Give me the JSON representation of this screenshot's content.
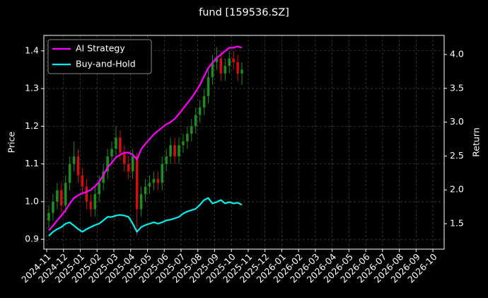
{
  "chart_data": {
    "type": "candlestick",
    "title": "fund [159536.SZ]",
    "ylabel": "Price",
    "y2label": "Return",
    "x": [
      "2024-11",
      "2024-11",
      "2024-11",
      "2024-11",
      "2024-12",
      "2024-12",
      "2024-12",
      "2024-12",
      "2025-01",
      "2025-01",
      "2025-01",
      "2025-01",
      "2025-02",
      "2025-02",
      "2025-02",
      "2025-02",
      "2025-03",
      "2025-03",
      "2025-03",
      "2025-03",
      "2025-04",
      "2025-04",
      "2025-04",
      "2025-04",
      "2025-05",
      "2025-05",
      "2025-05",
      "2025-05",
      "2025-06",
      "2025-06",
      "2025-06",
      "2025-06",
      "2025-07",
      "2025-07",
      "2025-07",
      "2025-07",
      "2025-08",
      "2025-08",
      "2025-08",
      "2025-08",
      "2025-09",
      "2025-09",
      "2025-09",
      "2025-09",
      "2025-10",
      "2025-10",
      "2025-10"
    ],
    "open": [
      0.95,
      0.97,
      1.0,
      1.03,
      0.99,
      1.05,
      1.1,
      1.12,
      1.07,
      1.04,
      1.0,
      0.98,
      1.02,
      1.05,
      1.08,
      1.12,
      1.14,
      1.17,
      1.13,
      1.1,
      1.08,
      1.12,
      0.98,
      1.02,
      1.04,
      1.05,
      1.06,
      1.05,
      1.1,
      1.12,
      1.15,
      1.12,
      1.15,
      1.16,
      1.18,
      1.2,
      1.23,
      1.25,
      1.28,
      1.33,
      1.37,
      1.38,
      1.34,
      1.36,
      1.38,
      1.37,
      1.34
    ],
    "high": [
      0.99,
      1.02,
      1.05,
      1.05,
      1.07,
      1.12,
      1.16,
      1.14,
      1.09,
      1.06,
      1.02,
      1.04,
      1.07,
      1.1,
      1.14,
      1.16,
      1.2,
      1.19,
      1.15,
      1.12,
      1.14,
      1.13,
      1.04,
      1.06,
      1.07,
      1.08,
      1.08,
      1.12,
      1.14,
      1.17,
      1.17,
      1.17,
      1.18,
      1.2,
      1.22,
      1.25,
      1.27,
      1.3,
      1.35,
      1.39,
      1.41,
      1.4,
      1.38,
      1.4,
      1.4,
      1.39,
      1.37
    ],
    "low": [
      0.93,
      0.95,
      0.98,
      0.97,
      0.97,
      1.03,
      1.08,
      1.05,
      1.02,
      0.98,
      0.96,
      0.96,
      1.0,
      1.03,
      1.06,
      1.1,
      1.12,
      1.11,
      1.08,
      1.06,
      1.06,
      0.91,
      0.96,
      1.0,
      1.02,
      1.03,
      1.03,
      1.03,
      1.08,
      1.1,
      1.1,
      1.1,
      1.13,
      1.14,
      1.16,
      1.18,
      1.21,
      1.23,
      1.26,
      1.31,
      1.35,
      1.32,
      1.32,
      1.34,
      1.35,
      1.32,
      1.31
    ],
    "close": [
      0.97,
      1.0,
      1.03,
      0.99,
      1.05,
      1.1,
      1.12,
      1.07,
      1.04,
      1.0,
      0.98,
      1.02,
      1.05,
      1.08,
      1.12,
      1.14,
      1.17,
      1.13,
      1.1,
      1.08,
      1.12,
      0.98,
      1.02,
      1.04,
      1.05,
      1.06,
      1.05,
      1.1,
      1.12,
      1.15,
      1.12,
      1.15,
      1.16,
      1.18,
      1.2,
      1.23,
      1.25,
      1.28,
      1.33,
      1.37,
      1.38,
      1.34,
      1.36,
      1.38,
      1.37,
      1.34,
      1.35
    ],
    "up_color": "#1e8c1e",
    "down_color": "#d01010",
    "series": [
      {
        "name": "AI Strategy",
        "color": "#ff00ff",
        "axis": "y2",
        "values": [
          1.4,
          1.47,
          1.55,
          1.62,
          1.7,
          1.8,
          1.88,
          1.92,
          1.95,
          1.97,
          2.0,
          2.05,
          2.12,
          2.22,
          2.33,
          2.4,
          2.48,
          2.52,
          2.55,
          2.55,
          2.52,
          2.45,
          2.6,
          2.68,
          2.75,
          2.82,
          2.87,
          2.92,
          2.97,
          3.0,
          3.05,
          3.12,
          3.2,
          3.28,
          3.36,
          3.45,
          3.55,
          3.68,
          3.8,
          3.88,
          3.95,
          4.0,
          4.05,
          4.1,
          4.1,
          4.12,
          4.1
        ]
      },
      {
        "name": "Buy-and-Hold",
        "color": "#00f0f0",
        "axis": "y2",
        "values": [
          1.32,
          1.38,
          1.42,
          1.45,
          1.5,
          1.52,
          1.47,
          1.42,
          1.38,
          1.42,
          1.45,
          1.48,
          1.5,
          1.55,
          1.6,
          1.6,
          1.62,
          1.63,
          1.62,
          1.6,
          1.5,
          1.38,
          1.45,
          1.48,
          1.5,
          1.52,
          1.5,
          1.52,
          1.55,
          1.56,
          1.58,
          1.6,
          1.65,
          1.68,
          1.7,
          1.72,
          1.78,
          1.85,
          1.88,
          1.8,
          1.82,
          1.85,
          1.8,
          1.82,
          1.8,
          1.81,
          1.78
        ]
      }
    ],
    "ylim": [
      0.874,
      1.441
    ],
    "yticks": [
      0.9,
      {
        "value": 1,
        "label": "1.0"
      },
      1.1,
      1.2,
      1.3,
      1.4
    ],
    "y2lim": [
      1.124,
      4.282
    ],
    "y2ticks": [
      1.5,
      {
        "value": 2,
        "label": "2.0"
      },
      2.5,
      {
        "value": 3,
        "label": "3.0"
      },
      3.5,
      {
        "value": 4,
        "label": "4.0"
      }
    ],
    "xticks": [
      "2024-11",
      "2024-12",
      "2025-01",
      "2025-02",
      "2025-03",
      "2025-04",
      "2025-05",
      "2025-06",
      "2025-07",
      "2025-08",
      "2025-09",
      "2025-10",
      "2025-11",
      "2025-12",
      "2026-01",
      "2026-02",
      "2026-03",
      "2026-04",
      "2026-05",
      "2026-06",
      "2026-07",
      "2026-08",
      "2026-09",
      "2026-10"
    ],
    "grid": true,
    "legend": "upper left"
  }
}
